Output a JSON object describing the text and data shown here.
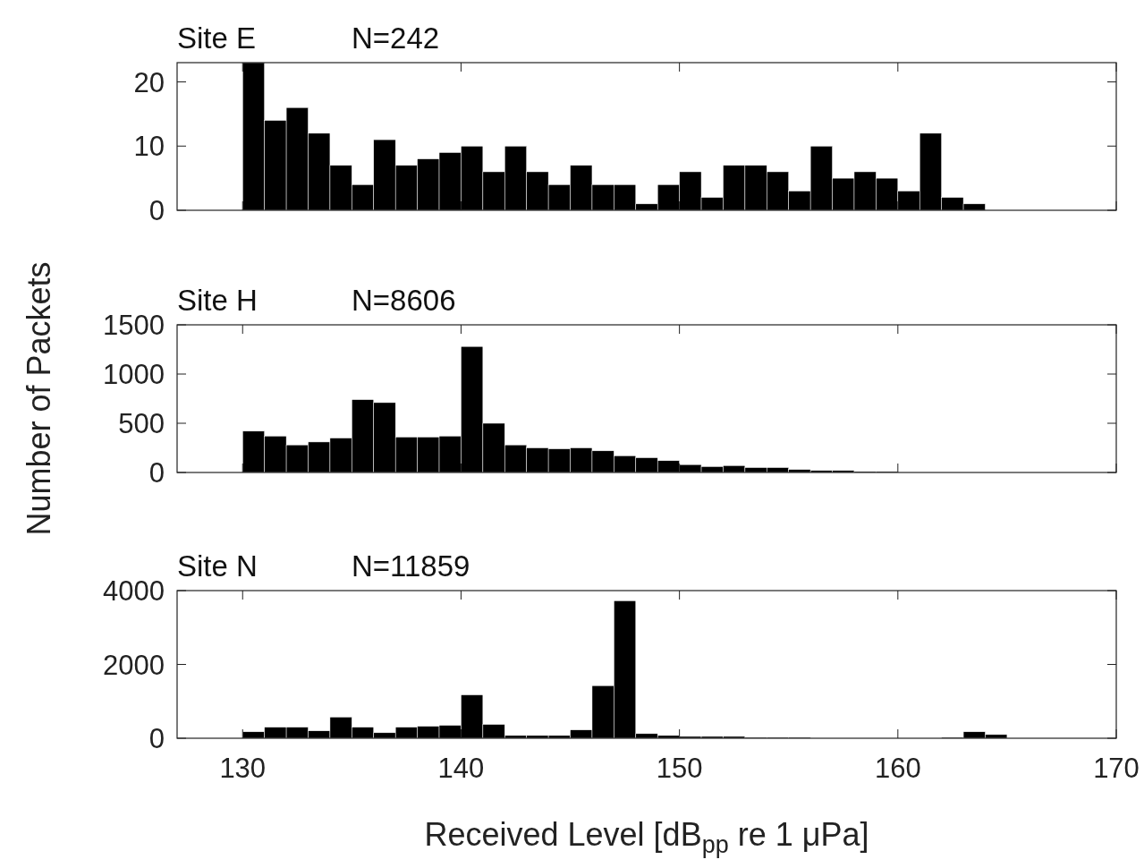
{
  "chart_data": [
    {
      "type": "histogram",
      "title": "Site E",
      "subtitle": "N=242",
      "bins": [
        130,
        131,
        132,
        133,
        134,
        135,
        136,
        137,
        138,
        139,
        140,
        141,
        142,
        143,
        144,
        145,
        146,
        147,
        148,
        149,
        150,
        151,
        152,
        153,
        154,
        155,
        156,
        157,
        158,
        159,
        160,
        161,
        162,
        163,
        164
      ],
      "values": [
        23,
        14,
        16,
        12,
        7,
        4,
        11,
        7,
        8,
        9,
        10,
        6,
        10,
        6,
        4,
        7,
        4,
        4,
        1,
        4,
        6,
        2,
        7,
        7,
        6,
        3,
        10,
        5,
        6,
        5,
        3,
        12,
        2,
        1
      ],
      "color": "#000000",
      "xlim": [
        127,
        170
      ],
      "xticks": [
        130,
        140,
        150,
        160,
        170
      ],
      "ylim": [
        0,
        23
      ],
      "yticks": [
        0,
        10,
        20
      ],
      "tick_labels": "y",
      "grid": false
    },
    {
      "type": "histogram",
      "title": "Site H",
      "subtitle": "N=8606",
      "ylabel": "Number of Packets",
      "bins": [
        130,
        131,
        132,
        133,
        134,
        135,
        136,
        137,
        138,
        139,
        140,
        141,
        142,
        143,
        144,
        145,
        146,
        147,
        148,
        149,
        150,
        151,
        152,
        153,
        154,
        155,
        156,
        157,
        158,
        159,
        160,
        161
      ],
      "values": [
        420,
        370,
        280,
        310,
        350,
        740,
        710,
        360,
        360,
        370,
        1280,
        500,
        280,
        250,
        240,
        250,
        220,
        170,
        150,
        120,
        80,
        60,
        70,
        50,
        50,
        30,
        20,
        20,
        10,
        10,
        0
      ],
      "color": "#000000",
      "xlim": [
        127,
        170
      ],
      "xticks": [
        130,
        140,
        150,
        160,
        170
      ],
      "ylim": [
        0,
        1500
      ],
      "yticks": [
        0,
        500,
        1000,
        1500
      ],
      "tick_labels": "y",
      "grid": false
    },
    {
      "type": "histogram",
      "title": "Site N",
      "subtitle": "N=11859",
      "xlabel": "Received Level [dB$_{pp}$ re 1 μPa]",
      "bins": [
        130,
        131,
        132,
        133,
        134,
        135,
        136,
        137,
        138,
        139,
        140,
        141,
        142,
        143,
        144,
        145,
        146,
        147,
        148,
        149,
        150,
        151,
        152,
        153,
        154,
        155,
        156,
        157,
        158,
        159,
        160,
        161,
        162,
        163,
        164,
        165
      ],
      "values": [
        175,
        300,
        300,
        200,
        575,
        300,
        150,
        300,
        325,
        350,
        1175,
        375,
        75,
        75,
        75,
        225,
        1425,
        3725,
        125,
        75,
        50,
        50,
        50,
        25,
        25,
        25,
        0,
        0,
        0,
        0,
        0,
        0,
        25,
        175,
        100
      ],
      "color": "#000000",
      "xlim": [
        127,
        170
      ],
      "xticks": [
        130,
        140,
        150,
        160,
        170
      ],
      "ylim": [
        0,
        4000
      ],
      "yticks": [
        0,
        2000,
        4000
      ],
      "grid": false
    }
  ]
}
